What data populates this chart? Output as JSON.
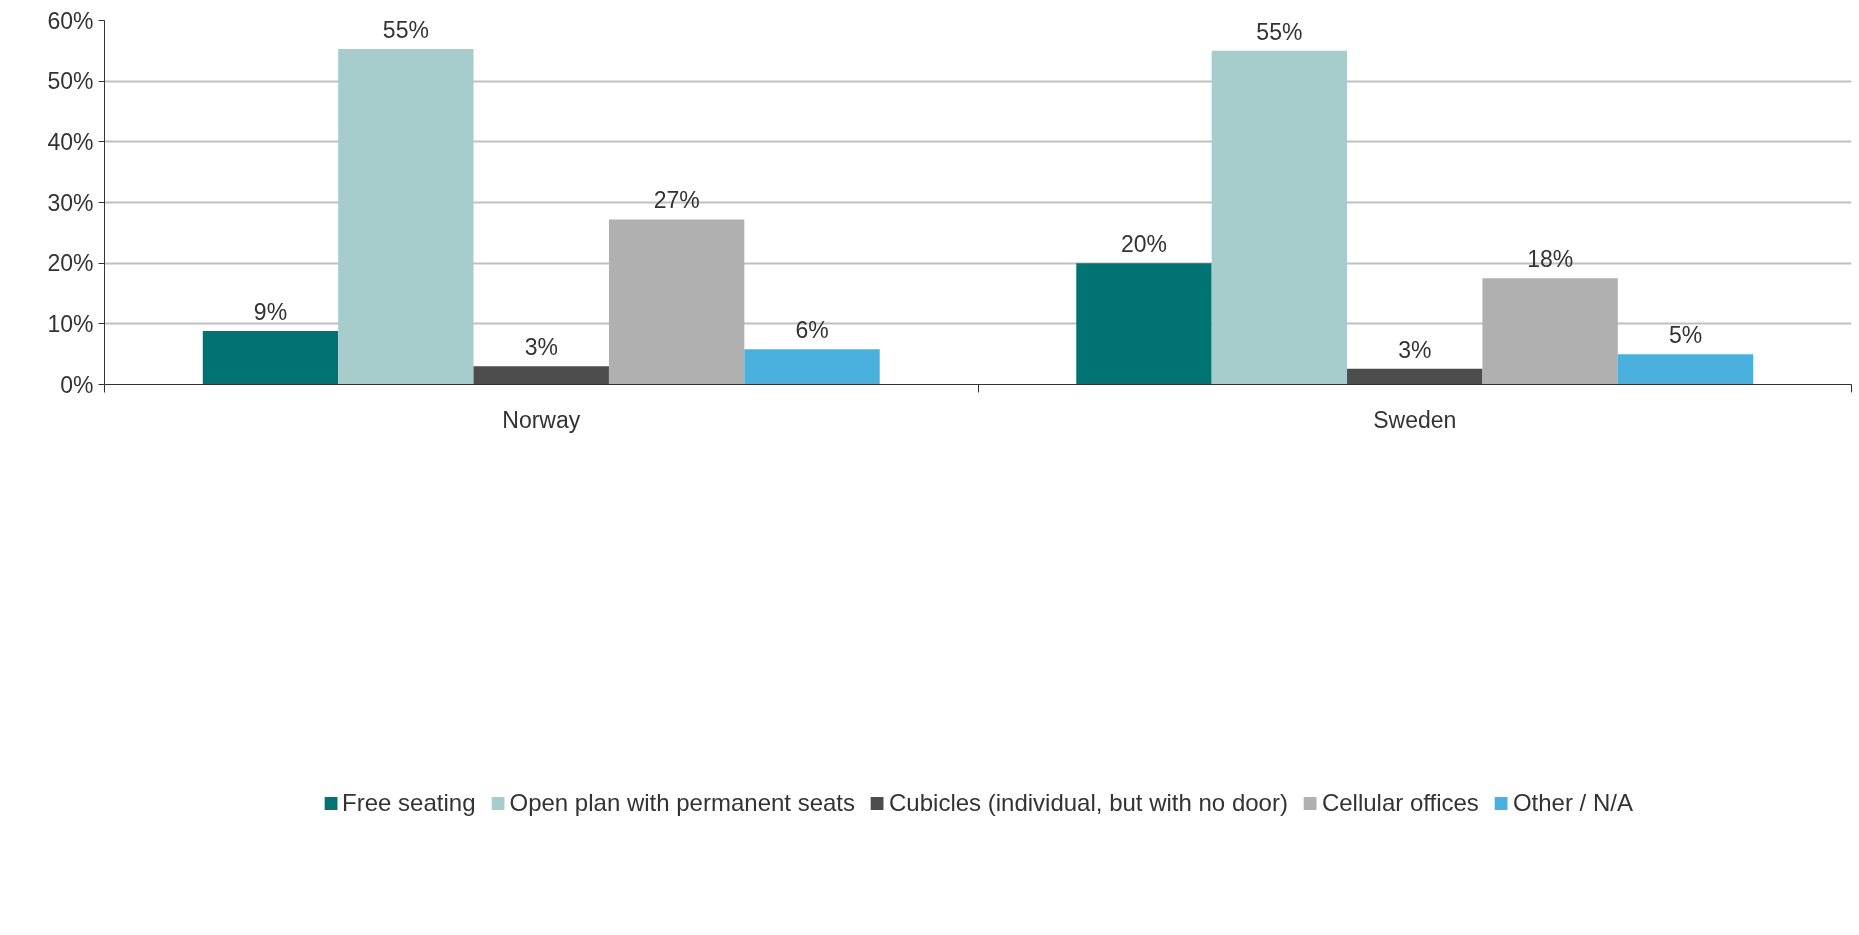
{
  "chart_data": {
    "type": "bar",
    "categories": [
      "Norway",
      "Sweden"
    ],
    "series": [
      {
        "name": "Free seating",
        "color": "#007372",
        "values": [
          8.8,
          20.0
        ],
        "value_labels": [
          "9%",
          "20%"
        ]
      },
      {
        "name": "Open plan with permanent seats",
        "color": "#a6cdcc",
        "values": [
          55.3,
          55.0
        ],
        "value_labels": [
          "55%",
          "55%"
        ]
      },
      {
        "name": "Cubicles (individual, but with no door)",
        "color": "#4d4d4d",
        "values": [
          3.0,
          2.6
        ],
        "value_labels": [
          "3%",
          "3%"
        ]
      },
      {
        "name": "Cellular offices",
        "color": "#b0b0b0",
        "values": [
          27.2,
          17.5
        ],
        "value_labels": [
          "27%",
          "18%"
        ]
      },
      {
        "name": "Other / N/A",
        "color": "#4ab0de",
        "values": [
          5.8,
          5.0
        ],
        "value_labels": [
          "6%",
          "5%"
        ]
      }
    ],
    "ylim": [
      0,
      60
    ],
    "yticks": [
      {
        "value": 0,
        "label": "0%"
      },
      {
        "value": 10,
        "label": "10%"
      },
      {
        "value": 20,
        "label": "20%"
      },
      {
        "value": 30,
        "label": "30%"
      },
      {
        "value": 40,
        "label": "40%"
      },
      {
        "value": 50,
        "label": "50%"
      },
      {
        "value": 60,
        "label": "60%"
      }
    ],
    "grid": "y",
    "legend": "bottom"
  }
}
